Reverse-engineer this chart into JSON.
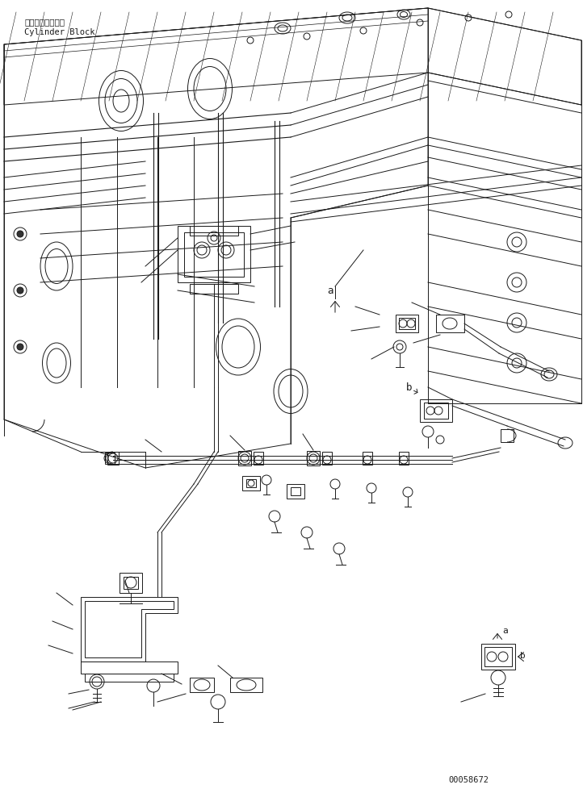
{
  "figsize": [
    7.22,
    9.83
  ],
  "dpi": 100,
  "bg_color": "#ffffff",
  "label_top_jp": "シリンダブロック",
  "label_top_en": "Cylinder Block",
  "part_number": "00058672",
  "lc": "#1a1a1a",
  "lw": 0.7
}
